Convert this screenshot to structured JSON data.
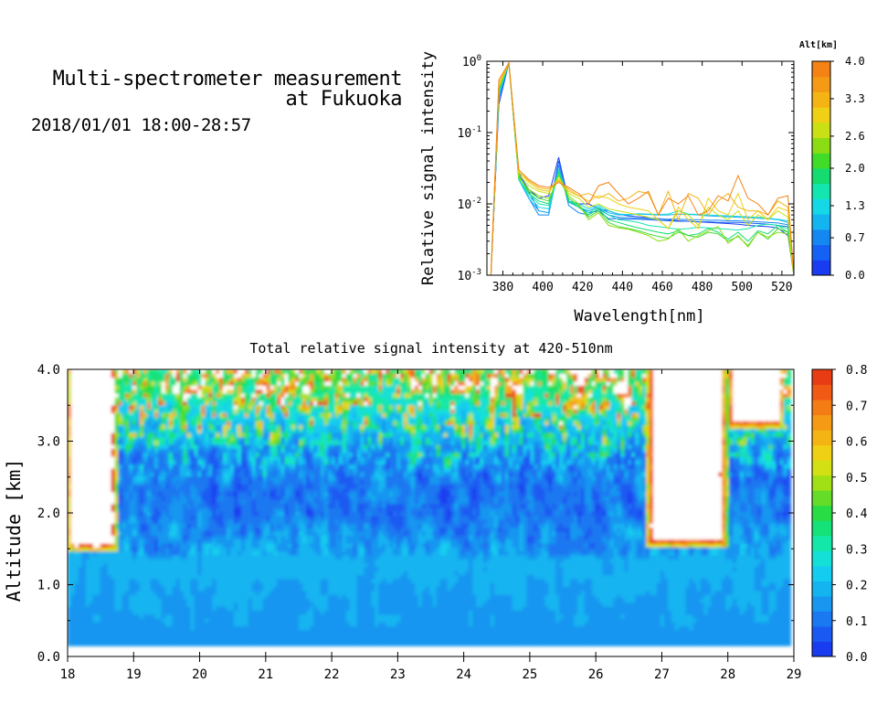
{
  "header": {
    "title_line1": "Multi-spectrometer measurement",
    "title_line2": "at Fukuoka",
    "subtitle": "2018/01/01 18:00-28:57"
  },
  "chart_data": [
    {
      "type": "line",
      "title": "",
      "xlabel": "Wavelength[nm]",
      "ylabel": "Relative signal intensity",
      "x_scale": "linear",
      "y_scale": "log",
      "xlim": [
        372,
        526
      ],
      "ylim": [
        0.001,
        1
      ],
      "x_ticks": [
        380,
        400,
        420,
        440,
        460,
        480,
        500,
        520
      ],
      "y_ticks": [
        0.001,
        0.01,
        0.1,
        1
      ],
      "y_tick_labels": [
        {
          "base": "10",
          "exp": "-3"
        },
        {
          "base": "10",
          "exp": "-2"
        },
        {
          "base": "10",
          "exp": "-1"
        },
        {
          "base": "10",
          "exp": "0"
        }
      ],
      "colorbar": {
        "label": "Alt[km]",
        "min": 0,
        "max": 4,
        "tick_labels": [
          "0.0",
          "0.7",
          "1.3",
          "2.0",
          "2.6",
          "3.3",
          "4.0"
        ],
        "colors": [
          "#1a3cf0",
          "#1560f5",
          "#1488f0",
          "#14b4f0",
          "#14d8e6",
          "#14e6b0",
          "#14dc6e",
          "#40dc28",
          "#8cdc14",
          "#c8e014",
          "#f0d014",
          "#f4b414",
          "#f49a14",
          "#f48214"
        ]
      },
      "wavelengths": [
        374,
        378,
        383,
        388,
        393,
        398,
        403,
        408,
        413,
        418,
        423,
        428,
        433,
        438,
        443,
        448,
        453,
        458,
        463,
        468,
        473,
        478,
        483,
        488,
        493,
        498,
        503,
        508,
        513,
        518,
        523,
        526
      ],
      "series": [
        {
          "alt": 0.0,
          "color": "#1a3cf0",
          "values": [
            0.001,
            0.25,
            0.95,
            0.026,
            0.016,
            0.012,
            0.013,
            0.045,
            0.011,
            0.01,
            0.01,
            0.0085,
            0.008,
            0.0072,
            0.0068,
            0.0066,
            0.0064,
            0.0062,
            0.006,
            0.0058,
            0.0057,
            0.0056,
            0.0055,
            0.0054,
            0.0053,
            0.0052,
            0.005,
            0.0049,
            0.0048,
            0.0046,
            0.0036,
            0.001
          ]
        },
        {
          "alt": 0.3,
          "color": "#1560f5",
          "values": [
            0.001,
            0.3,
            0.95,
            0.028,
            0.015,
            0.008,
            0.0075,
            0.04,
            0.011,
            0.009,
            0.0075,
            0.008,
            0.0062,
            0.0062,
            0.0061,
            0.0061,
            0.006,
            0.0059,
            0.0058,
            0.0057,
            0.0057,
            0.0056,
            0.0056,
            0.0055,
            0.0055,
            0.0055,
            0.0054,
            0.0053,
            0.0052,
            0.005,
            0.0048,
            0.001
          ]
        },
        {
          "alt": 0.7,
          "color": "#1488f0",
          "values": [
            0.001,
            0.3,
            0.95,
            0.022,
            0.012,
            0.007,
            0.007,
            0.035,
            0.0095,
            0.0075,
            0.007,
            0.0085,
            0.007,
            0.0065,
            0.0064,
            0.0063,
            0.0062,
            0.0062,
            0.0061,
            0.0061,
            0.006,
            0.006,
            0.0059,
            0.0059,
            0.0058,
            0.0058,
            0.0057,
            0.0056,
            0.0055,
            0.0054,
            0.0051,
            0.001
          ]
        },
        {
          "alt": 1.0,
          "color": "#14b4f0",
          "values": [
            0.001,
            0.32,
            0.95,
            0.022,
            0.012,
            0.008,
            0.0075,
            0.03,
            0.0105,
            0.009,
            0.008,
            0.009,
            0.0075,
            0.007,
            0.007,
            0.0072,
            0.0071,
            0.007,
            0.007,
            0.0072,
            0.0071,
            0.007,
            0.0068,
            0.0067,
            0.0066,
            0.0065,
            0.0064,
            0.0063,
            0.0062,
            0.006,
            0.0055,
            0.001
          ]
        },
        {
          "alt": 1.3,
          "color": "#14d8e6",
          "values": [
            0.001,
            0.35,
            0.95,
            0.022,
            0.013,
            0.009,
            0.0085,
            0.028,
            0.011,
            0.01,
            0.0085,
            0.0095,
            0.008,
            0.0072,
            0.0071,
            0.0073,
            0.0072,
            0.0071,
            0.0072,
            0.008,
            0.0072,
            0.0071,
            0.007,
            0.0069,
            0.0068,
            0.0067,
            0.0066,
            0.0065,
            0.0063,
            0.0061,
            0.0058,
            0.001
          ]
        },
        {
          "alt": 1.7,
          "color": "#14e6b0",
          "values": [
            0.001,
            0.38,
            0.95,
            0.022,
            0.014,
            0.01,
            0.0095,
            0.03,
            0.011,
            0.0095,
            0.0075,
            0.009,
            0.007,
            0.006,
            0.0058,
            0.0055,
            0.005,
            0.0048,
            0.0046,
            0.0044,
            0.0045,
            0.0047,
            0.0046,
            0.0045,
            0.0044,
            0.0043,
            0.0045,
            0.005,
            0.0052,
            0.005,
            0.0045,
            0.001
          ]
        },
        {
          "alt": 2.0,
          "color": "#14dc6e",
          "values": [
            0.001,
            0.4,
            0.95,
            0.025,
            0.014,
            0.011,
            0.01,
            0.028,
            0.011,
            0.009,
            0.007,
            0.0085,
            0.006,
            0.0055,
            0.005,
            0.0046,
            0.0043,
            0.004,
            0.0038,
            0.0042,
            0.0036,
            0.0038,
            0.0045,
            0.004,
            0.0032,
            0.004,
            0.003,
            0.0042,
            0.0038,
            0.005,
            0.004,
            0.001
          ]
        },
        {
          "alt": 2.3,
          "color": "#40dc28",
          "values": [
            0.001,
            0.4,
            0.95,
            0.024,
            0.015,
            0.012,
            0.011,
            0.025,
            0.012,
            0.0095,
            0.0065,
            0.008,
            0.0055,
            0.0048,
            0.0045,
            0.0042,
            0.0038,
            0.0035,
            0.0033,
            0.004,
            0.0036,
            0.0034,
            0.004,
            0.0038,
            0.003,
            0.0035,
            0.0026,
            0.004,
            0.0032,
            0.0045,
            0.004,
            0.001
          ]
        },
        {
          "alt": 2.6,
          "color": "#8cdc14",
          "values": [
            0.001,
            0.42,
            0.95,
            0.023,
            0.016,
            0.013,
            0.012,
            0.022,
            0.013,
            0.01,
            0.006,
            0.0075,
            0.005,
            0.0046,
            0.0044,
            0.004,
            0.0036,
            0.003,
            0.0032,
            0.0045,
            0.003,
            0.0036,
            0.0042,
            0.0048,
            0.0028,
            0.0036,
            0.0025,
            0.004,
            0.0034,
            0.004,
            0.0038,
            0.001
          ]
        },
        {
          "alt": 3.0,
          "color": "#c8e014",
          "values": [
            0.001,
            0.45,
            0.95,
            0.026,
            0.018,
            0.015,
            0.014,
            0.024,
            0.014,
            0.012,
            0.009,
            0.01,
            0.0085,
            0.008,
            0.0075,
            0.007,
            0.0065,
            0.006,
            0.0045,
            0.008,
            0.007,
            0.005,
            0.009,
            0.007,
            0.006,
            0.008,
            0.005,
            0.007,
            0.006,
            0.008,
            0.0065,
            0.001
          ]
        },
        {
          "alt": 3.3,
          "color": "#f0d014",
          "values": [
            0.001,
            0.45,
            0.95,
            0.028,
            0.02,
            0.016,
            0.015,
            0.022,
            0.015,
            0.013,
            0.011,
            0.013,
            0.012,
            0.01,
            0.009,
            0.0085,
            0.008,
            0.006,
            0.0045,
            0.009,
            0.006,
            0.0045,
            0.012,
            0.008,
            0.007,
            0.014,
            0.006,
            0.008,
            0.006,
            0.009,
            0.008,
            0.001
          ]
        },
        {
          "alt": 3.6,
          "color": "#f4b414",
          "values": [
            0.001,
            0.5,
            0.95,
            0.03,
            0.021,
            0.017,
            0.016,
            0.021,
            0.016,
            0.013,
            0.014,
            0.012,
            0.014,
            0.011,
            0.012,
            0.015,
            0.014,
            0.007,
            0.015,
            0.006,
            0.014,
            0.012,
            0.007,
            0.011,
            0.014,
            0.009,
            0.008,
            0.008,
            0.007,
            0.011,
            0.009,
            0.001
          ]
        },
        {
          "alt": 4.0,
          "color": "#f48214",
          "values": [
            0.001,
            0.55,
            0.95,
            0.03,
            0.022,
            0.018,
            0.017,
            0.02,
            0.017,
            0.014,
            0.01,
            0.018,
            0.02,
            0.014,
            0.01,
            0.012,
            0.015,
            0.007,
            0.012,
            0.01,
            0.013,
            0.007,
            0.008,
            0.013,
            0.011,
            0.025,
            0.012,
            0.01,
            0.007,
            0.012,
            0.013,
            0.001
          ]
        }
      ]
    },
    {
      "type": "heatmap",
      "title": "Total relative signal intensity at 420-510nm",
      "xlabel": "",
      "ylabel": "Altitude [km]",
      "xlim": [
        18,
        29
      ],
      "ylim": [
        0,
        4
      ],
      "x_ticks": [
        18,
        19,
        20,
        21,
        22,
        23,
        24,
        25,
        26,
        27,
        28,
        29
      ],
      "y_ticks": [
        0,
        1,
        2,
        3,
        4
      ],
      "y_tick_labels": [
        "0.0",
        "1.0",
        "2.0",
        "3.0",
        "4.0"
      ],
      "data_x_range": [
        18.0,
        28.95
      ],
      "data_y_range": [
        0.15,
        4.0
      ],
      "colorbar": {
        "min": 0,
        "max": 0.8,
        "tick_labels": [
          "0.0",
          "0.1",
          "0.2",
          "0.3",
          "0.4",
          "0.5",
          "0.6",
          "0.7",
          "0.8"
        ],
        "colors": [
          "#1a3cf0",
          "#1a5af2",
          "#1a78f0",
          "#1896f0",
          "#14b4f0",
          "#14ccf0",
          "#14e0d8",
          "#14e8a8",
          "#14e278",
          "#28dc46",
          "#64dc28",
          "#a0e014",
          "#d2e014",
          "#f0d014",
          "#f4b414",
          "#f49a14",
          "#f47c14",
          "#f05a14",
          "#e83c14"
        ],
        "over_color": "#ffffff"
      },
      "regions": [
        {
          "x": [
            18.0,
            18.75
          ],
          "y": [
            1.45,
            4.0
          ],
          "level": "over"
        },
        {
          "x": [
            26.75,
            28.0
          ],
          "y": [
            1.5,
            4.0
          ],
          "level": "over"
        },
        {
          "x": [
            28.0,
            28.85
          ],
          "y": [
            3.15,
            4.0
          ],
          "level": "over"
        }
      ],
      "profile": {
        "altitude_km": [
          0.15,
          0.5,
          1.0,
          1.3,
          1.6,
          2.0,
          2.4,
          2.8,
          3.2,
          3.6,
          4.0
        ],
        "typical_value": [
          0.15,
          0.16,
          0.17,
          0.18,
          0.15,
          0.11,
          0.1,
          0.13,
          0.22,
          0.32,
          0.4
        ]
      }
    }
  ]
}
